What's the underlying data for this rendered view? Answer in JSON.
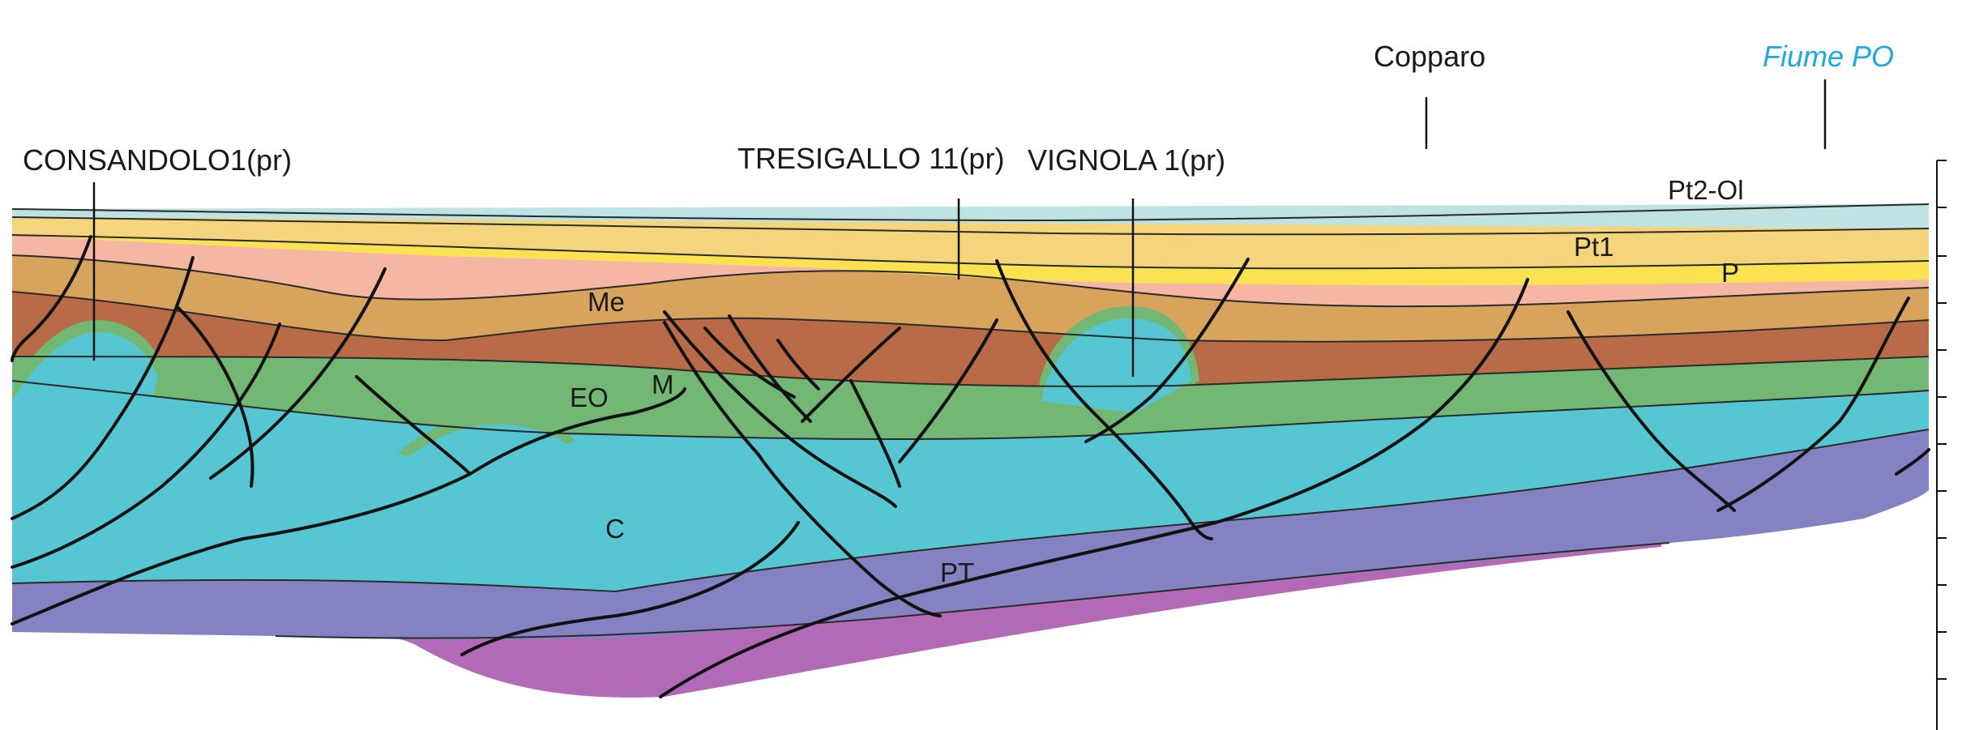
{
  "wells": [
    {
      "name": "CONSANDOLO1(pr)"
    },
    {
      "name": "TRESIGALLO 11(pr)"
    },
    {
      "name": "VIGNOLA 1(pr)"
    }
  ],
  "localities": [
    {
      "name": "Copparo"
    },
    {
      "name": "Fiume PO"
    }
  ],
  "units": {
    "pt2_ol": "Pt2-Ol",
    "pt1": "Pt1",
    "p": "P",
    "me": "Me",
    "m": "M",
    "eo": "EO",
    "c": "C",
    "pt": "PT"
  },
  "colors": {
    "Pt2-Ol": "#bfe3e3",
    "Pt1": "#f5d57c",
    "P": "#fbe251",
    "Me": "#f5b7a4",
    "M": "#d8a35c",
    "EO": "#b86b46",
    "green": "#72b874",
    "C": "#56c7d2",
    "PT": "#8482c2",
    "basement": "#b26ab6",
    "fiume": "#1ea7e0"
  }
}
